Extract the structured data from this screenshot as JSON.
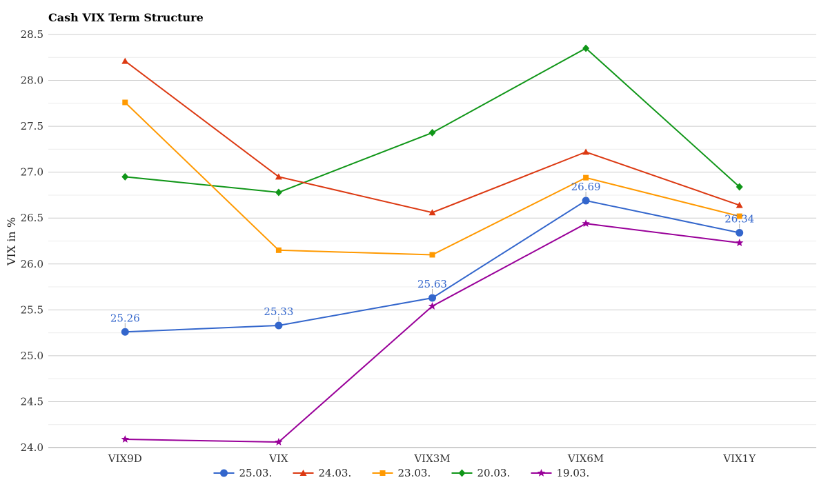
{
  "chart_data": {
    "type": "line",
    "title": "Cash VIX Term Structure",
    "xlabel": "",
    "ylabel": "VIX in %",
    "categories": [
      "VIX9D",
      "VIX",
      "VIX3M",
      "VIX6M",
      "VIX1Y"
    ],
    "ylim": [
      24.0,
      28.5
    ],
    "yticks": [
      "24.0",
      "24.5",
      "25.0",
      "25.5",
      "26.0",
      "26.5",
      "27.0",
      "27.5",
      "28.0",
      "28.5"
    ],
    "grid": true,
    "legend_position": "bottom",
    "series": [
      {
        "name": "25.03.",
        "color": "#3366cc",
        "marker": "circle",
        "values": [
          25.26,
          25.33,
          25.63,
          26.69,
          26.34
        ],
        "data_labels": [
          "25.26",
          "25.33",
          "25.63",
          "26.69",
          "26.34"
        ]
      },
      {
        "name": "24.03.",
        "color": "#dc3912",
        "marker": "triangle",
        "values": [
          28.21,
          26.95,
          26.56,
          27.22,
          26.64
        ]
      },
      {
        "name": "23.03.",
        "color": "#ff9900",
        "marker": "square",
        "values": [
          27.76,
          26.15,
          26.1,
          26.94,
          26.52
        ]
      },
      {
        "name": "20.03.",
        "color": "#109618",
        "marker": "diamond",
        "values": [
          26.95,
          26.78,
          27.43,
          28.35,
          26.84
        ]
      },
      {
        "name": "19.03.",
        "color": "#990099",
        "marker": "star",
        "values": [
          24.09,
          24.06,
          25.54,
          26.44,
          26.23
        ]
      }
    ]
  }
}
